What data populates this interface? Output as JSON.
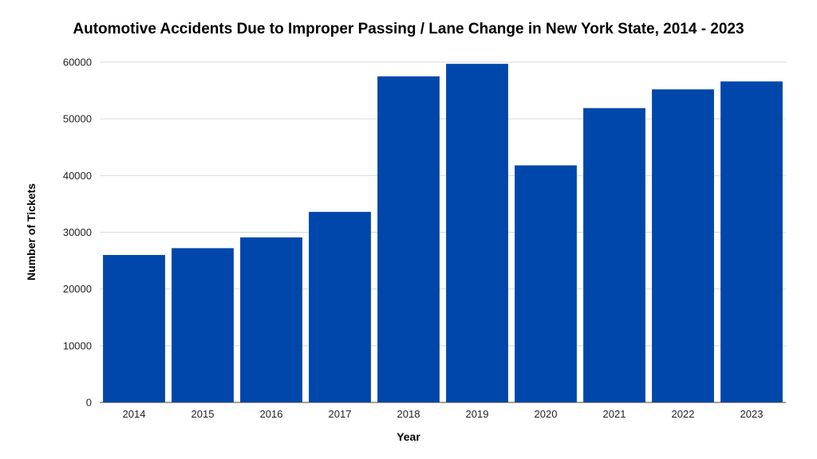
{
  "chart_data": {
    "type": "bar",
    "title": "Automotive Accidents Due to Improper Passing / Lane Change in New York State, 2014 - 2023",
    "xlabel": "Year",
    "ylabel": "Number of Tickets",
    "categories": [
      "2014",
      "2015",
      "2016",
      "2017",
      "2018",
      "2019",
      "2020",
      "2021",
      "2022",
      "2023"
    ],
    "values": [
      26000,
      27200,
      29100,
      33600,
      57500,
      59700,
      41800,
      51900,
      55200,
      56600
    ],
    "ylim": [
      0,
      60000
    ],
    "yticks": [
      "0",
      "10000",
      "20000",
      "30000",
      "40000",
      "50000",
      "60000"
    ],
    "grid": true,
    "legend": "none",
    "bar_color": "#0047ab"
  }
}
